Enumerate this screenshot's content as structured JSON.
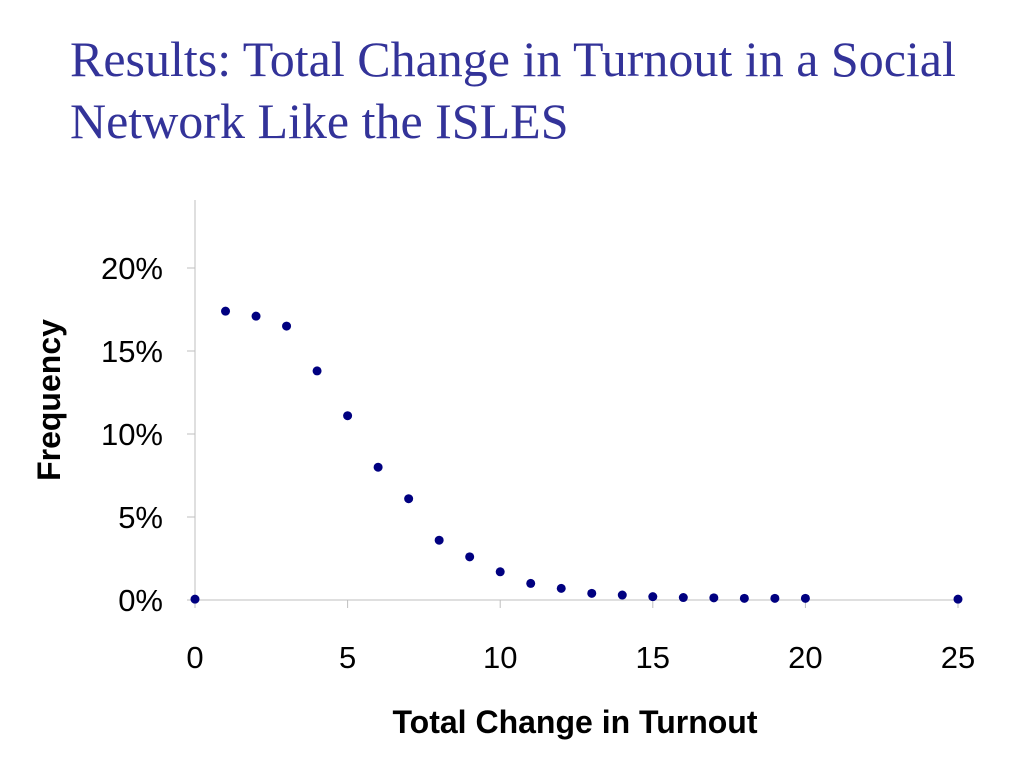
{
  "slide": {
    "title": "Results: Total Change in Turnout in a Social Network Like the ISLES"
  },
  "colors": {
    "title": "#333399",
    "marker": "#000080",
    "axis": "#bfbfbf"
  },
  "chart_data": {
    "type": "scatter",
    "title": "",
    "xlabel": "Total Change in Turnout",
    "ylabel": "Frequency",
    "xlim": [
      0,
      25
    ],
    "ylim": [
      0,
      0.2
    ],
    "x_ticks": [
      0,
      5,
      10,
      15,
      20,
      25
    ],
    "x_tick_labels": [
      "0",
      "5",
      "10",
      "15",
      "20",
      "25"
    ],
    "y_ticks": [
      0,
      0.05,
      0.1,
      0.15,
      0.2
    ],
    "y_tick_labels": [
      "0%",
      "5%",
      "10%",
      "15%",
      "20%"
    ],
    "grid": false,
    "legend": "none",
    "series": [
      {
        "x": [
          0,
          1,
          2,
          3,
          4,
          5,
          6,
          7,
          8,
          9,
          10,
          11,
          12,
          13,
          14,
          15,
          16,
          17,
          18,
          19,
          20,
          25
        ],
        "y": [
          0.0005,
          0.174,
          0.171,
          0.165,
          0.138,
          0.111,
          0.08,
          0.061,
          0.036,
          0.026,
          0.017,
          0.01,
          0.007,
          0.004,
          0.003,
          0.002,
          0.0015,
          0.0013,
          0.001,
          0.001,
          0.001,
          0.0005
        ]
      }
    ]
  }
}
